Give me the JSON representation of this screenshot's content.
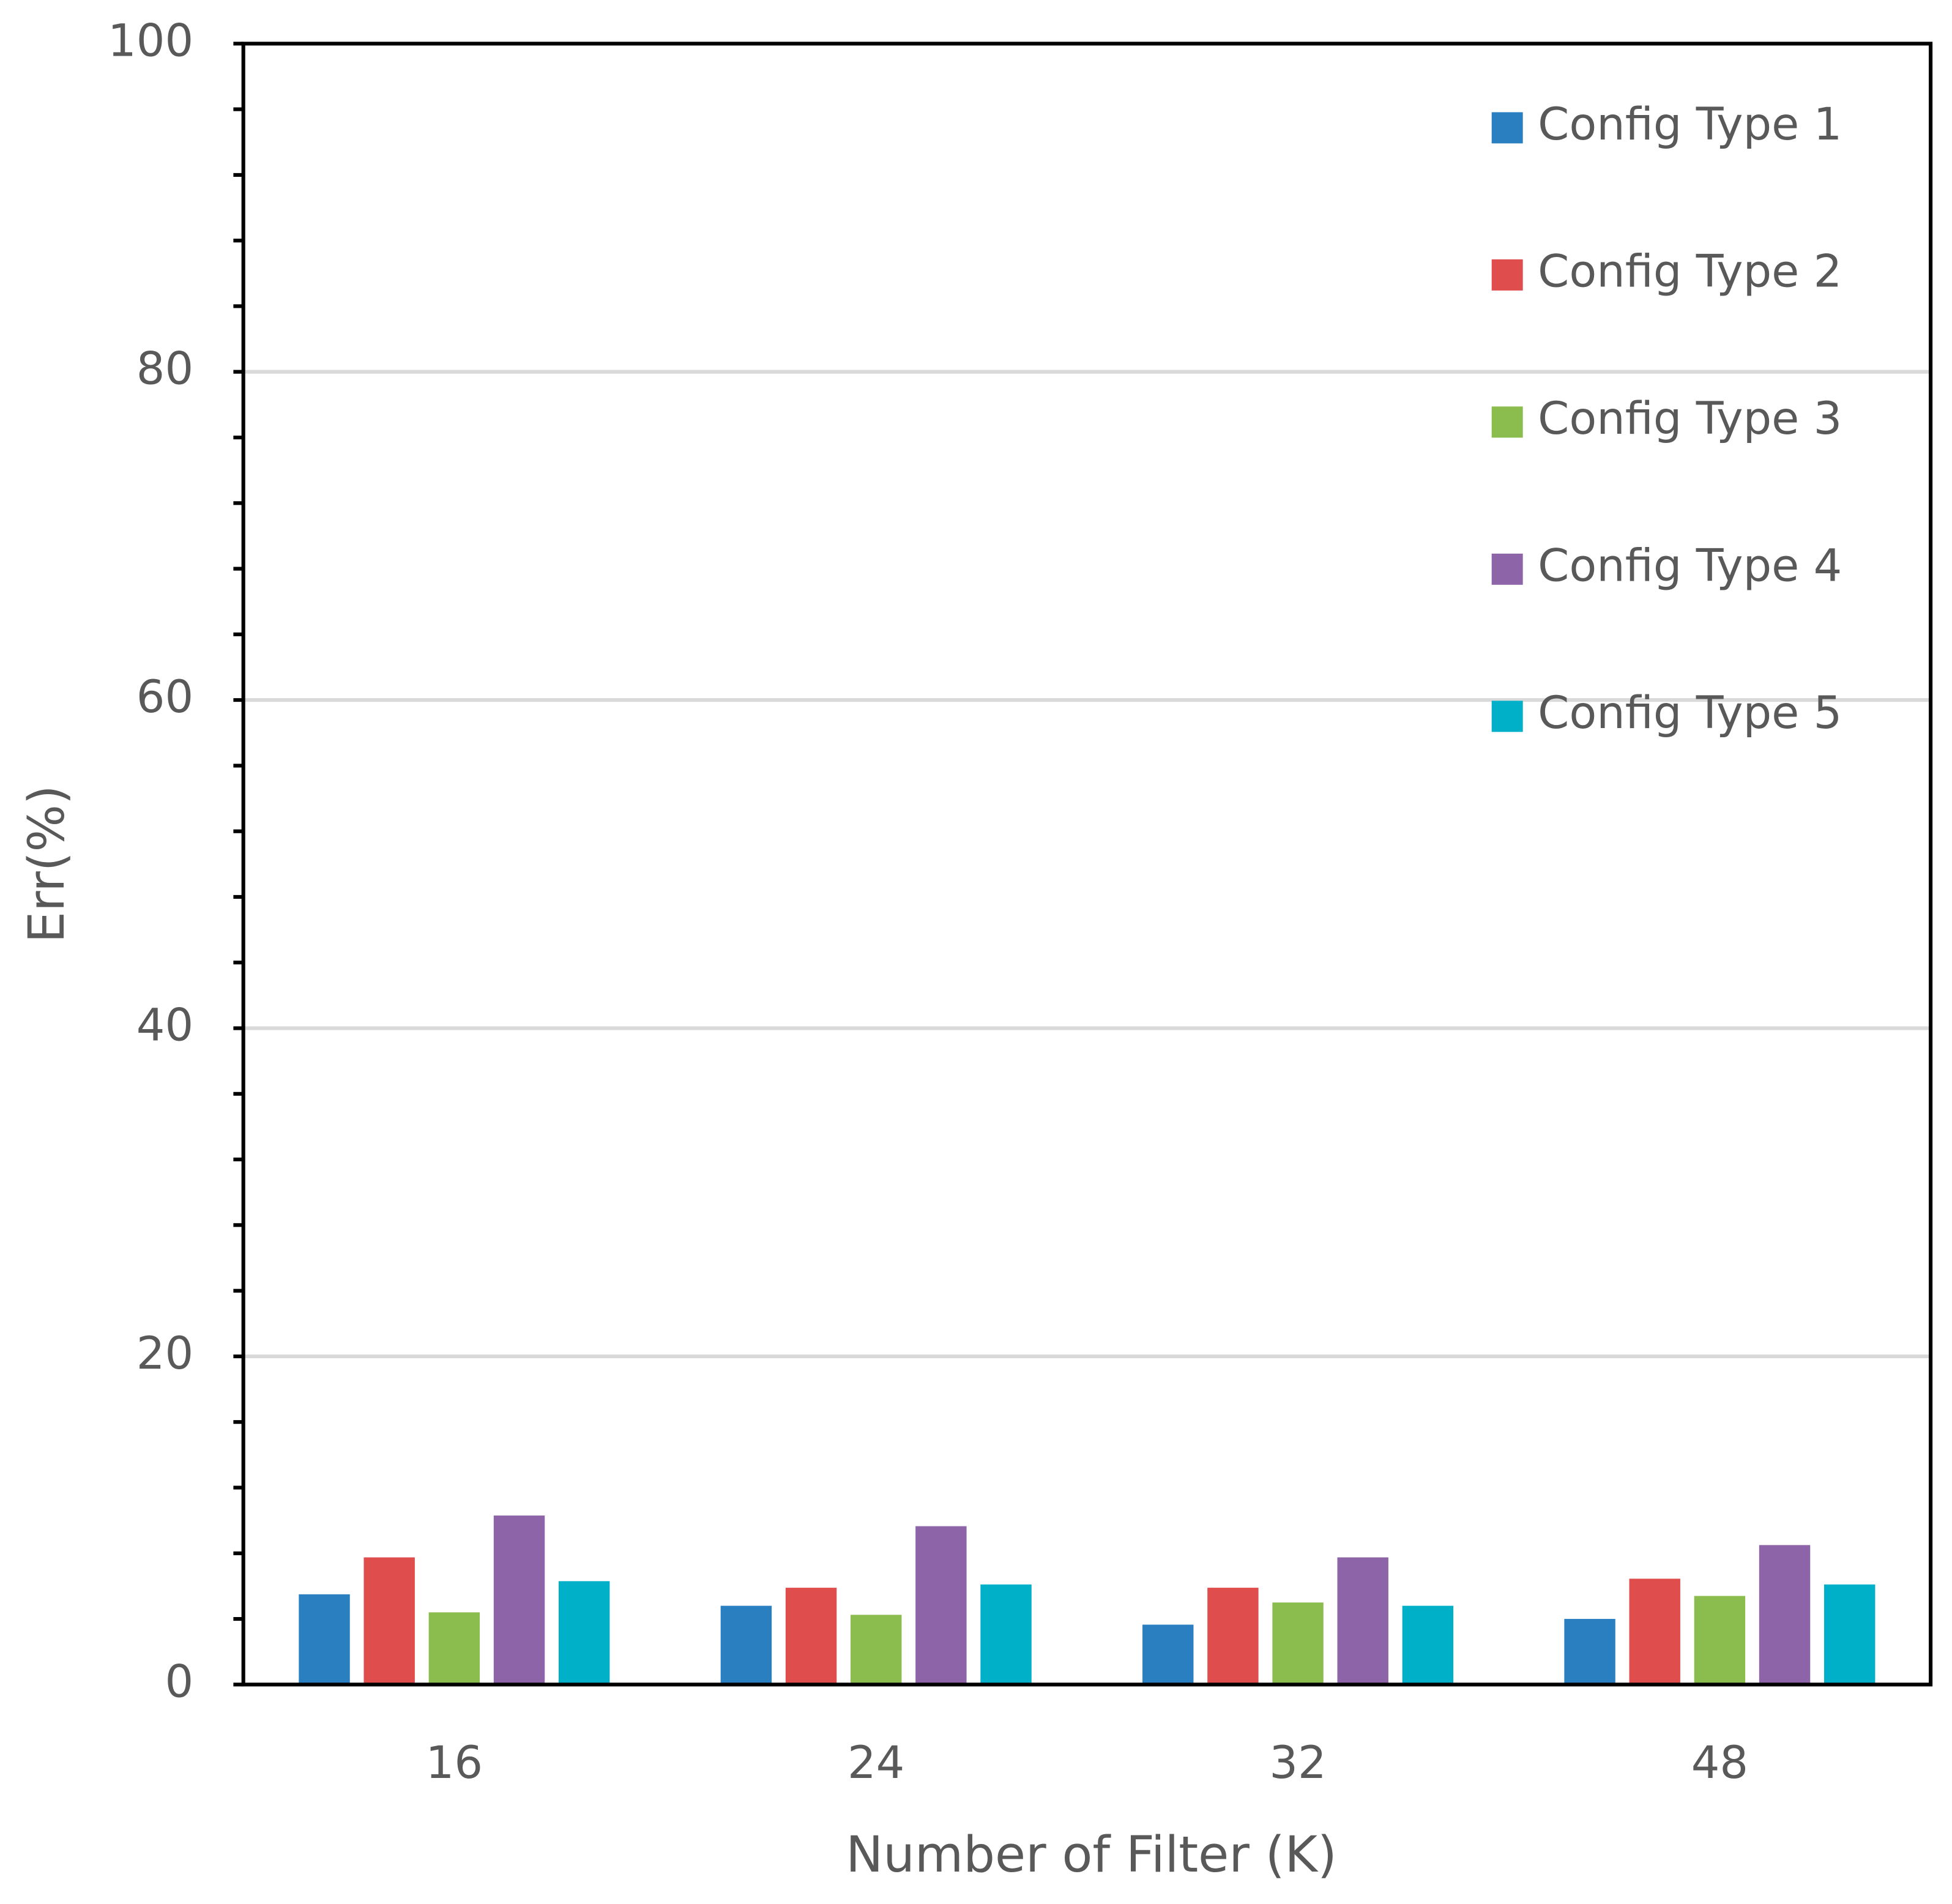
{
  "chart_data": {
    "type": "bar",
    "xlabel": "Number of Filter (K)",
    "ylabel": "Err(%)",
    "categories": [
      "16",
      "24",
      "32",
      "48"
    ],
    "series": [
      {
        "name": "Config Type 1",
        "color": "#2a7fc1",
        "values": [
          5.5,
          4.8,
          3.65,
          4.0
        ]
      },
      {
        "name": "Config Type 2",
        "color": "#e04d4d",
        "values": [
          7.75,
          5.9,
          5.9,
          6.45
        ]
      },
      {
        "name": "Config Type 3",
        "color": "#8bbd4e",
        "values": [
          4.4,
          4.25,
          5.0,
          5.4
        ]
      },
      {
        "name": "Config Type 4",
        "color": "#8d64a8",
        "values": [
          10.3,
          9.65,
          7.75,
          8.5
        ]
      },
      {
        "name": "Config Type 5",
        "color": "#00b0c8",
        "values": [
          6.3,
          6.1,
          4.8,
          6.1
        ]
      }
    ],
    "ylim": [
      0,
      100
    ],
    "yticks": [
      0,
      20,
      40,
      60,
      80,
      100
    ],
    "yminorticks": [
      4,
      8,
      12,
      16,
      24,
      28,
      32,
      36,
      44,
      48,
      52,
      56,
      64,
      68,
      72,
      76,
      84,
      88,
      92,
      96
    ],
    "grid": true,
    "legend": "upper-right"
  }
}
